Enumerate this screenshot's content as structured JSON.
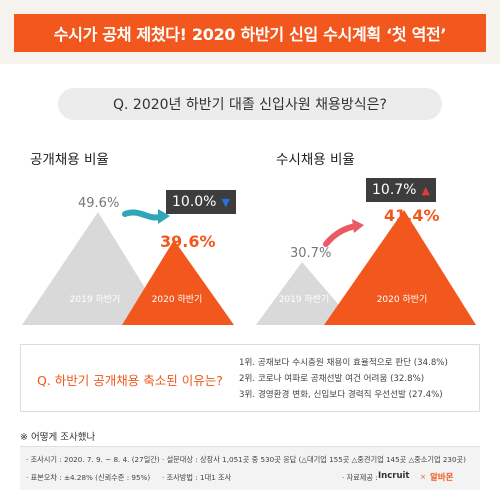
{
  "banner": {
    "title": "수시가 공채 제쳤다! 2020 하반기 신입 수시계획 ‘첫 역전’"
  },
  "question": "Q. 2020년 하반기 대졸 신입사원 채용방식은?",
  "charts": {
    "left": {
      "title": "공개채용 비율",
      "prev_label": "2019 하반기",
      "curr_label": "2020 하반기",
      "change": "10.0%",
      "change_dir": "down",
      "change_color": "#2e6fd8"
    },
    "right": {
      "title": "수시채용 비율",
      "prev_label": "2019 하반기",
      "curr_label": "2020 하반기",
      "change": "10.7%",
      "change_dir": "up",
      "change_color": "#e23a3a"
    }
  },
  "chart_data": [
    {
      "type": "area",
      "title": "공개채용 비율",
      "categories": [
        "2019 하반기",
        "2020 하반기"
      ],
      "values": [
        49.6,
        39.6
      ],
      "value_labels": [
        "49.6%",
        "39.6%"
      ],
      "colors": [
        "#d9d9d9",
        "#f2581e"
      ]
    },
    {
      "type": "area",
      "title": "수시채용 비율",
      "categories": [
        "2019 하반기",
        "2020 하반기"
      ],
      "values": [
        30.7,
        41.4
      ],
      "value_labels": [
        "30.7%",
        "41.4%"
      ],
      "colors": [
        "#d9d9d9",
        "#f2581e"
      ]
    }
  ],
  "reasons": {
    "question": "Q. 하반기 공개채용 축소된 이유는?",
    "items": [
      "1위. 공채보다 수시충원 채용이 효율적으로 판단 (34.8%)",
      "2위. 코로나 여파로 공채선발 여건 어려움 (32.8%)",
      "3위. 경영환경 변화, 신입보다 경력직 우선선발 (27.4%)"
    ]
  },
  "survey": {
    "title": "※ 어떻게 조사했나",
    "period": "· 조사시기 : 2020. 7. 9. ~ 8. 4. (27일간)",
    "target": "· 설문대상 : 상장사 1,051곳 중 530곳 응답 (△대기업 155곳 △중견기업 145곳 △중소기업 230곳)",
    "error": "· 표본오차 : ±4.28% (신뢰수준 : 95%)",
    "method": "· 조사방법 : 1대1 조사",
    "source_label": "· 자료제공 :",
    "source_1": "Incruit",
    "source_sep": "×",
    "source_2": "알바몬"
  },
  "colors": {
    "accent": "#f2581e",
    "grey_triangle": "#d9d9d9",
    "up": "#e23a3a",
    "down": "#2e6fd8"
  }
}
